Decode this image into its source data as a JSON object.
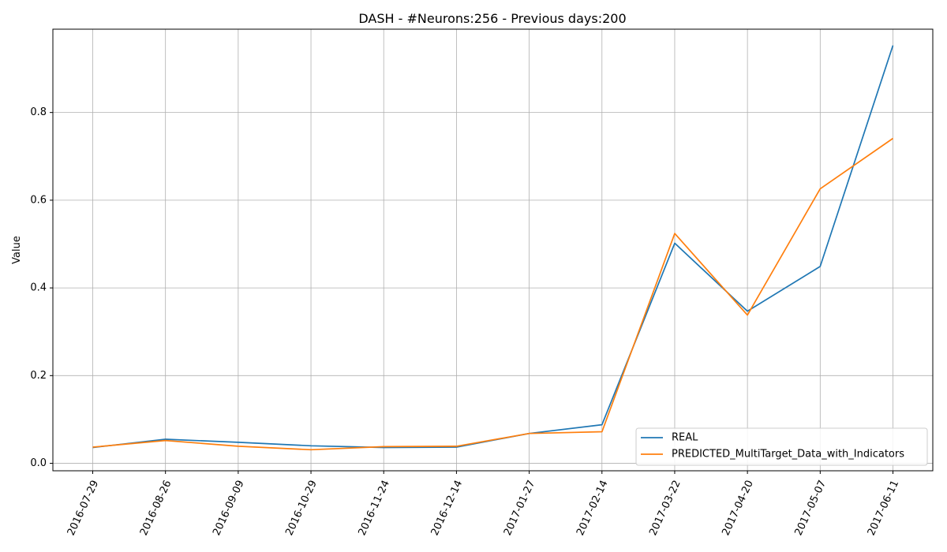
{
  "chart_data": {
    "type": "line",
    "title": "DASH - #Neurons:256 - Previous days:200",
    "xlabel": "",
    "ylabel": "Value",
    "x": [
      "2016-07-29",
      "2016-08-26",
      "2016-09-09",
      "2016-10-29",
      "2016-11-24",
      "2016-12-14",
      "2017-01-27",
      "2017-02-14",
      "2017-03-22",
      "2017-04-20",
      "2017-05-07",
      "2017-06-11"
    ],
    "yticks": [
      "0.0",
      "0.2",
      "0.4",
      "0.6",
      "0.8"
    ],
    "ylim": [
      -0.017,
      0.99
    ],
    "grid": true,
    "legend_position": "lower-right",
    "series": [
      {
        "name": "REAL",
        "color": "#1f77b4",
        "values": [
          0.036,
          0.055,
          0.048,
          0.04,
          0.036,
          0.037,
          0.068,
          0.088,
          0.502,
          0.347,
          0.449,
          0.953
        ]
      },
      {
        "name": "PREDICTED_MultiTarget_Data_with_Indicators",
        "color": "#ff7f0e",
        "values": [
          0.037,
          0.052,
          0.039,
          0.031,
          0.038,
          0.039,
          0.068,
          0.072,
          0.524,
          0.338,
          0.626,
          0.741
        ]
      }
    ]
  }
}
